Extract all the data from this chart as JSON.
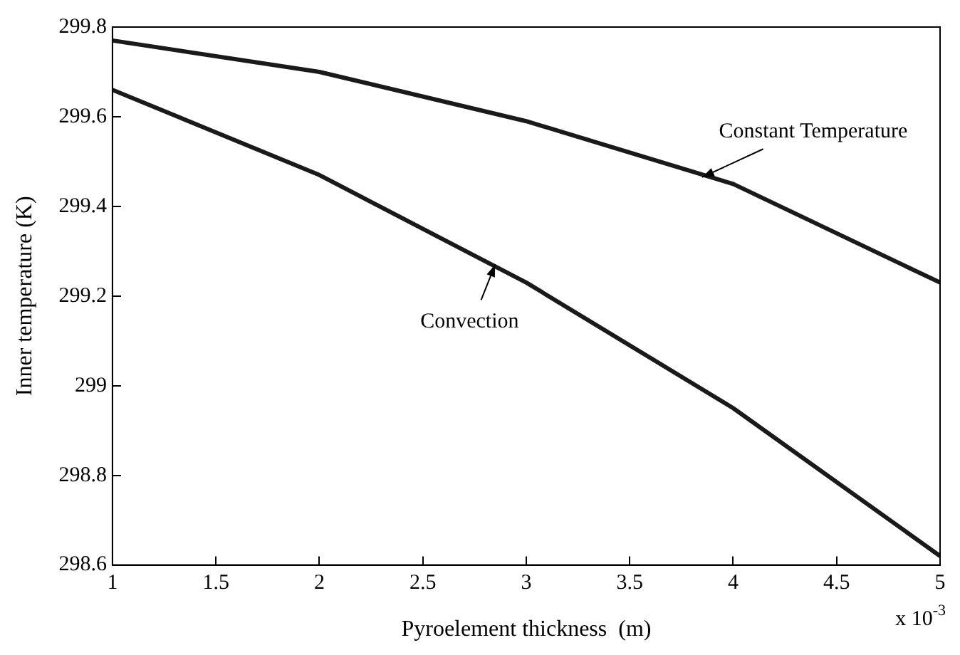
{
  "chart_data": {
    "type": "line",
    "xlabel": "Pyroelement thickness  (m)",
    "ylabel": "Inner temperature (K)",
    "x": [
      1,
      2,
      3,
      4,
      5
    ],
    "series": [
      {
        "color": "#1a1a1a",
        "values": [
          299.77,
          299.7,
          299.59,
          299.45,
          299.23
        ]
      },
      {
        "color": "#1a1a1a",
        "values": [
          299.66,
          299.47,
          299.23,
          298.95,
          298.62
        ]
      }
    ],
    "xlim": [
      1,
      5
    ],
    "xticks": [
      1,
      1.5,
      2,
      2.5,
      3,
      3.5,
      4,
      4.5,
      5
    ],
    "ylim": [
      298.6,
      299.8
    ],
    "yticks": [
      298.6,
      298.8,
      299,
      299.2,
      299.4,
      299.6,
      299.8
    ],
    "grid": false,
    "legend": false,
    "marker": "none",
    "line_style": "solid",
    "annotations": [
      {
        "text": "Constant Temperature",
        "x": 3.85,
        "y": 299.465
      },
      {
        "text": "Convection",
        "x": 2.85,
        "y": 299.27
      },
      "x 10$^{-3}$"
    ]
  }
}
